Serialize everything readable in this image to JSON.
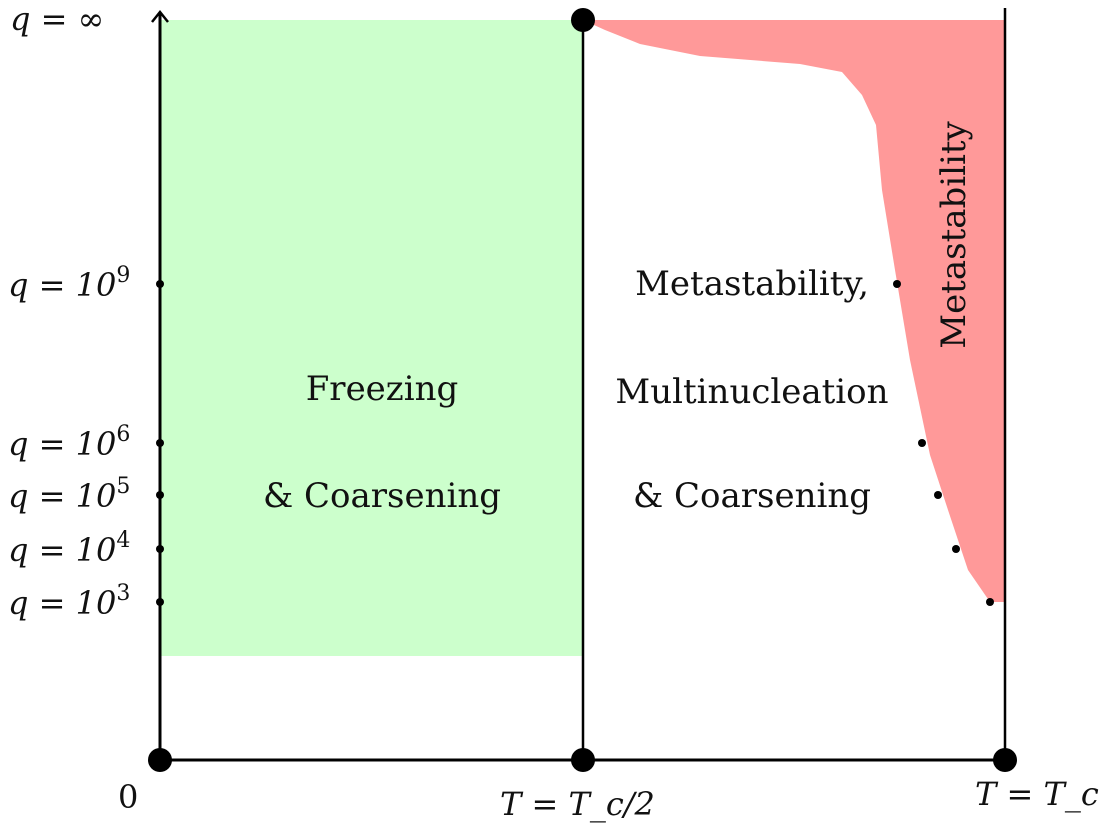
{
  "axes": {
    "y_top_label": "q = ∞",
    "origin_label": "0",
    "x_mid_label": "T = T_c/2",
    "x_right_label": "T = T_c"
  },
  "y_ticks": [
    {
      "label_prefix": "q = 10",
      "exp": "9",
      "log_q": 9
    },
    {
      "label_prefix": "q = 10",
      "exp": "6",
      "log_q": 6
    },
    {
      "label_prefix": "q = 10",
      "exp": "5",
      "log_q": 5
    },
    {
      "label_prefix": "q = 10",
      "exp": "4",
      "log_q": 4
    },
    {
      "label_prefix": "q = 10",
      "exp": "3",
      "log_q": 3
    }
  ],
  "regions": {
    "left": {
      "line1": "Freezing",
      "line2": "& Coarsening",
      "color": "#ccffcc"
    },
    "right": {
      "line1": "Metastability,",
      "line2": "Multinucleation",
      "line3": "& Coarsening"
    },
    "metastable": {
      "label": "Metastability",
      "color": "#ff9999"
    }
  }
}
